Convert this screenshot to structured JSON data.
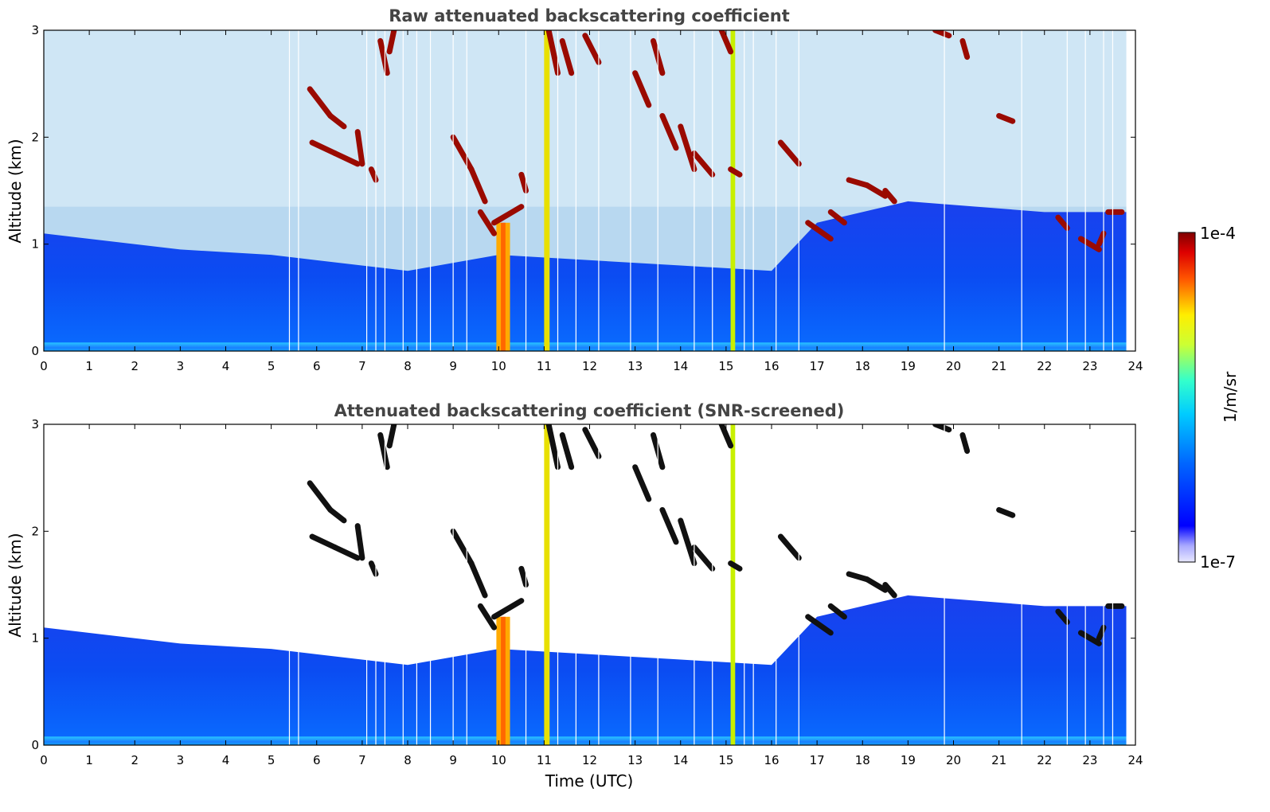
{
  "chart_data": [
    {
      "type": "heatmap",
      "title": "Raw attenuated backscattering coefficient",
      "xlabel": "",
      "ylabel": "Altitude (km)",
      "xlim": [
        0,
        24
      ],
      "ylim": [
        0,
        3
      ],
      "x_ticks": [
        "0",
        "1",
        "2",
        "3",
        "4",
        "5",
        "6",
        "7",
        "8",
        "9",
        "10",
        "11",
        "12",
        "13",
        "14",
        "15",
        "16",
        "17",
        "18",
        "19",
        "20",
        "21",
        "22",
        "23",
        "24"
      ],
      "y_ticks": [
        "0",
        "1",
        "2",
        "3"
      ],
      "screened": false
    },
    {
      "type": "heatmap",
      "title": "Attenuated backscattering coefficient (SNR-screened)",
      "xlabel": "Time (UTC)",
      "ylabel": "Altitude (km)",
      "xlim": [
        0,
        24
      ],
      "ylim": [
        0,
        3
      ],
      "x_ticks": [
        "0",
        "1",
        "2",
        "3",
        "4",
        "5",
        "6",
        "7",
        "8",
        "9",
        "10",
        "11",
        "12",
        "13",
        "14",
        "15",
        "16",
        "17",
        "18",
        "19",
        "20",
        "21",
        "22",
        "23",
        "24"
      ],
      "y_ticks": [
        "0",
        "1",
        "2",
        "3"
      ],
      "screened": true
    }
  ],
  "colorbar": {
    "label": "1/m/sr",
    "max_label": "1e-4",
    "min_label": "1e-7",
    "scale": "log",
    "colormap": "jet"
  },
  "features": {
    "boundary_layer_top_km": [
      [
        0,
        1.1
      ],
      [
        3,
        0.95
      ],
      [
        5,
        0.9
      ],
      [
        6,
        0.85
      ],
      [
        8,
        0.75
      ],
      [
        10,
        0.9
      ],
      [
        14,
        0.8
      ],
      [
        16,
        0.75
      ],
      [
        17,
        1.2
      ],
      [
        19,
        1.4
      ],
      [
        22,
        1.3
      ],
      [
        23.8,
        1.3
      ]
    ],
    "dropout_times_h": [
      5.4,
      5.6,
      7.1,
      7.3,
      7.5,
      7.9,
      8.2,
      8.5,
      9.0,
      9.3,
      10.6,
      11.3,
      11.7,
      12.2,
      12.9,
      13.5,
      14.3,
      14.7,
      15.4,
      15.6,
      16.1,
      16.6,
      19.8,
      21.5,
      22.5,
      22.9,
      23.3,
      23.5
    ],
    "cloud_segments": [
      [
        5.85,
        2.45,
        6.3,
        2.2
      ],
      [
        6.3,
        2.2,
        6.6,
        2.1
      ],
      [
        5.9,
        1.95,
        6.4,
        1.85
      ],
      [
        6.4,
        1.85,
        6.9,
        1.75
      ],
      [
        6.9,
        2.05,
        7.0,
        1.75
      ],
      [
        7.2,
        1.7,
        7.3,
        1.6
      ],
      [
        7.4,
        2.9,
        7.55,
        2.6
      ],
      [
        7.7,
        3.0,
        7.6,
        2.8
      ],
      [
        9.6,
        1.3,
        9.9,
        1.1
      ],
      [
        9.9,
        1.2,
        10.5,
        1.35
      ],
      [
        9.0,
        2.0,
        9.4,
        1.7
      ],
      [
        9.4,
        1.7,
        9.7,
        1.4
      ],
      [
        10.5,
        1.65,
        10.6,
        1.5
      ],
      [
        11.1,
        3.0,
        11.3,
        2.6
      ],
      [
        11.4,
        2.9,
        11.6,
        2.6
      ],
      [
        11.9,
        2.95,
        12.2,
        2.7
      ],
      [
        13.0,
        2.6,
        13.3,
        2.3
      ],
      [
        13.4,
        2.9,
        13.6,
        2.6
      ],
      [
        13.6,
        2.2,
        13.9,
        1.9
      ],
      [
        14.0,
        2.1,
        14.3,
        1.7
      ],
      [
        14.3,
        1.85,
        14.7,
        1.65
      ],
      [
        14.9,
        3.0,
        15.1,
        2.8
      ],
      [
        15.1,
        1.7,
        15.3,
        1.65
      ],
      [
        16.2,
        1.95,
        16.6,
        1.75
      ],
      [
        16.8,
        1.2,
        17.3,
        1.05
      ],
      [
        17.3,
        1.3,
        17.6,
        1.2
      ],
      [
        17.7,
        1.6,
        18.1,
        1.55
      ],
      [
        18.1,
        1.55,
        18.5,
        1.45
      ],
      [
        18.5,
        1.5,
        18.7,
        1.4
      ],
      [
        19.6,
        3.0,
        19.9,
        2.95
      ],
      [
        20.2,
        2.9,
        20.3,
        2.75
      ],
      [
        21.0,
        2.2,
        21.3,
        2.15
      ],
      [
        22.3,
        1.25,
        22.5,
        1.15
      ],
      [
        22.8,
        1.05,
        23.2,
        0.95
      ],
      [
        23.2,
        1.0,
        23.3,
        1.1
      ],
      [
        23.4,
        1.3,
        23.7,
        1.3
      ]
    ]
  }
}
